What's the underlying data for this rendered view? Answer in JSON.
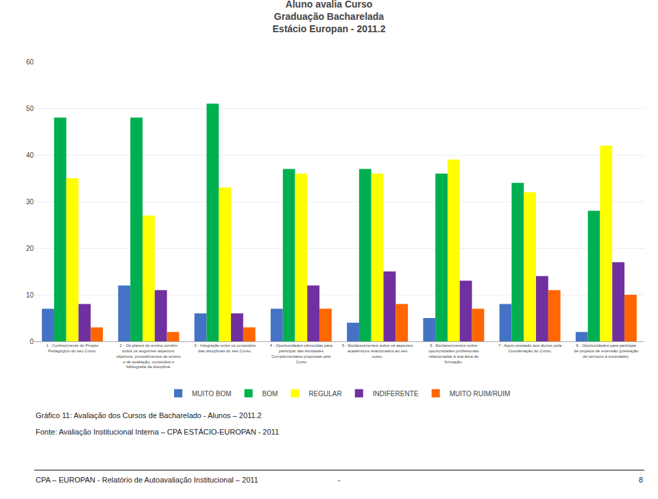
{
  "chart_data": {
    "type": "bar",
    "title": "Aluno avalia Curso\nGraduação Bacharelada\nEstácio Europan - 2011.2",
    "categories": [
      "1 - Conhecimento do Projeto\nPedagógico do seu Curso.",
      "2 - Os planos de ensino contêm\ntodos os seguintes aspectos:\nobjetivos, procedimentos de ensino\ne de avaliação, conteúdos e\nbibliografia da disciplina.",
      "3 - Integração entre os conteúdos\ndas disciplinas do seu Curso.",
      "4 - Oportunidades oferecidas para\nparticipar das Atividades\nComplementares propostas pelo\nCurso",
      "5 - Esclarecimentos sobre os aspectos\nacadêmicos relacionados ao seu\ncurso.",
      "6 - Esclarecimentos sobre\noportunidades profissionais\nrelacionadas à sua área de\nformação.",
      "7 - Apoio prestado aos alunos pela\nCoordenação do Curso.",
      "9 - Oportunidades para participar\nde projetos de extensão (prestação\nde serviços à sociedade)."
    ],
    "series": [
      {
        "name": "MUITO BOM",
        "color": "#4472C4",
        "values": [
          7,
          12,
          6,
          7,
          4,
          5,
          8,
          2
        ]
      },
      {
        "name": "BOM",
        "color": "#00B050",
        "values": [
          48,
          48,
          51,
          37,
          37,
          36,
          34,
          28
        ]
      },
      {
        "name": "REGULAR",
        "color": "#FFFF00",
        "values": [
          35,
          27,
          33,
          36,
          36,
          39,
          32,
          42
        ]
      },
      {
        "name": "INDIFERENTE",
        "color": "#7030A0",
        "values": [
          8,
          11,
          6,
          12,
          15,
          13,
          14,
          17
        ]
      },
      {
        "name": "MUITO RUIM/RUIM",
        "color": "#FF6600",
        "values": [
          3,
          2,
          3,
          7,
          8,
          7,
          11,
          10
        ]
      }
    ],
    "ylim": [
      0,
      60
    ],
    "yticks": [
      0,
      10,
      20,
      30,
      40,
      50,
      60
    ],
    "grid": true,
    "legend": "bottom",
    "annotations": [
      "Gráfico 11: Avaliação dos Cursos de Bacharelado - Alunos – 2011.2",
      "Fonte: Avaliação Institucional Interna – CPA ESTÁCIO-EUROPAN - 2011",
      "CPA – EUROPAN - Relatório de Autoavaliação Institucional – 2011",
      "-",
      "8"
    ]
  }
}
